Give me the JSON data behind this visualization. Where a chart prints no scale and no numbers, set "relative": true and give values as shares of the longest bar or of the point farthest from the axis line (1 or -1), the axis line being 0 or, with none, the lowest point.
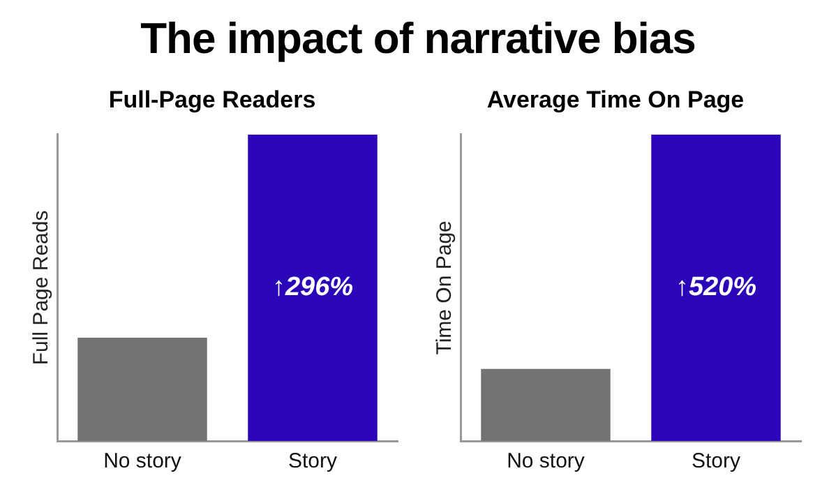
{
  "chart_data": [
    {
      "type": "other",
      "title": "The impact of narrative bias"
    },
    {
      "type": "bar",
      "title": "Full-Page Readers",
      "ylabel": "Full Page Reads",
      "categories": [
        "No story",
        "Story"
      ],
      "values": [
        0.337,
        1
      ],
      "colors": [
        "#737373",
        "#2a06b8"
      ],
      "relative": true,
      "grid": false,
      "legend": false,
      "annotations": [
        "↑296%"
      ]
    },
    {
      "type": "bar",
      "title": "Average Time On Page",
      "ylabel": "Time On Page",
      "categories": [
        "No story",
        "Story"
      ],
      "values": [
        0.235,
        1
      ],
      "colors": [
        "#737373",
        "#2a06b8"
      ],
      "relative": true,
      "grid": false,
      "legend": false,
      "annotations": [
        "↑520%"
      ]
    }
  ]
}
